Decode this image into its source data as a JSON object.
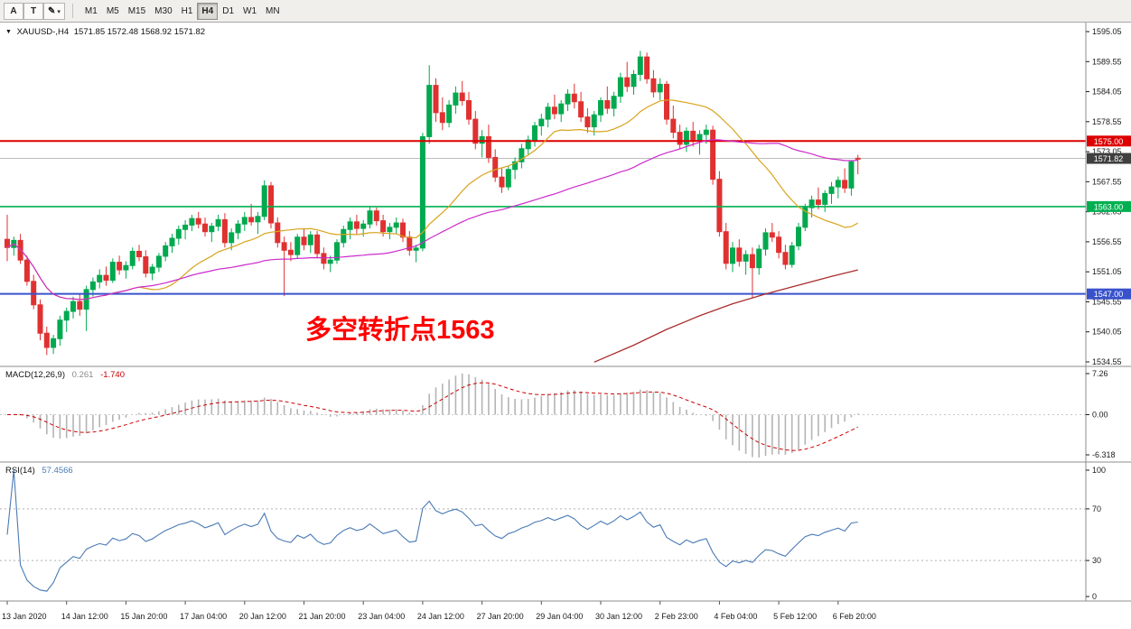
{
  "toolbar": {
    "tools": [
      {
        "name": "cursor-tool",
        "label": "A"
      },
      {
        "name": "text-tool",
        "label": "T"
      },
      {
        "name": "draw-tool",
        "label": "✎"
      }
    ],
    "draw_caret": "▾",
    "timeframes": [
      "M1",
      "M5",
      "M15",
      "M30",
      "H1",
      "H4",
      "D1",
      "W1",
      "MN"
    ],
    "active_timeframe": "H4"
  },
  "chart": {
    "title_marker": "▼",
    "symbol_title": "XAUUSD-,H4",
    "ohlc_text": "1571.85 1572.48 1568.92 1571.82",
    "annotation": {
      "text": "多空转折点1563",
      "color": "#ff0000"
    },
    "macd_label": {
      "name": "MACD(12,26,9)",
      "main_value": "0.261",
      "signal_value": "-1.740"
    },
    "rsi_label": {
      "name": "RSI(14)",
      "value": "57.4566"
    }
  },
  "chart_data": {
    "type": "candlestick",
    "symbol": "XAUUSD-",
    "timeframe": "H4",
    "title": "XAUUSD-,H4 1571.85 1572.48 1568.92 1571.82",
    "last_candle": {
      "open": 1571.85,
      "high": 1572.48,
      "low": 1568.92,
      "close": 1571.82
    },
    "x_labels": [
      "13 Jan 2020",
      "14 Jan 12:00",
      "15 Jan 20:00",
      "17 Jan 04:00",
      "20 Jan 12:00",
      "21 Jan 20:00",
      "23 Jan 04:00",
      "24 Jan 12:00",
      "27 Jan 20:00",
      "29 Jan 04:00",
      "30 Jan 12:00",
      "2 Feb 23:00",
      "4 Feb 04:00",
      "5 Feb 12:00",
      "6 Feb 20:00"
    ],
    "candles_per_label": 9,
    "price_axis_labels": [
      "1595.05",
      "1589.55",
      "1584.05",
      "1578.55",
      "1573.05",
      "1567.55",
      "1562.05",
      "1556.55",
      "1551.05",
      "1545.55",
      "1540.05",
      "1534.55"
    ],
    "horizontal_lines": [
      {
        "price": 1575.0,
        "label": "1575.00",
        "color": "#dd0000",
        "width": 2
      },
      {
        "price": 1563.0,
        "label": "1563.00",
        "color": "#00b050",
        "width": 1.6
      },
      {
        "price": 1547.0,
        "label": "1547.00",
        "color": "#3952cc",
        "width": 2
      }
    ],
    "current_price": {
      "price": 1571.82,
      "label": "1571.82",
      "color": "#3f3f3f"
    },
    "candle_colors": {
      "up": "#00a94f",
      "down": "#e03131"
    },
    "ohlc": {
      "open": [
        1557.0,
        1555.5,
        1556.8,
        1553.2,
        1549.3,
        1545.0,
        1539.8,
        1537.2,
        1538.8,
        1542.2,
        1543.8,
        1545.6,
        1544.2,
        1547.8,
        1549.2,
        1550.4,
        1549.5,
        1552.8,
        1551.4,
        1552.2,
        1554.8,
        1553.8,
        1550.8,
        1551.9,
        1553.9,
        1555.8,
        1557.2,
        1558.8,
        1559.6,
        1560.8,
        1559.8,
        1558.4,
        1559.4,
        1560.6,
        1556.4,
        1558.2,
        1559.8,
        1561.0,
        1560.2,
        1561.2,
        1566.8,
        1560.0,
        1556.4,
        1555.0,
        1554.2,
        1557.4,
        1556.0,
        1557.8,
        1554.4,
        1552.6,
        1553.2,
        1556.4,
        1558.8,
        1560.2,
        1559.0,
        1559.8,
        1562.2,
        1560.4,
        1558.4,
        1559.2,
        1560.0,
        1557.4,
        1555.0,
        1555.4,
        1575.8,
        1585.2,
        1580.2,
        1578.4,
        1581.6,
        1583.8,
        1582.4,
        1579.0,
        1574.6,
        1575.8,
        1572.0,
        1568.4,
        1566.6,
        1569.8,
        1571.2,
        1573.6,
        1575.2,
        1577.8,
        1579.0,
        1581.2,
        1580.0,
        1581.8,
        1583.6,
        1582.2,
        1579.4,
        1577.6,
        1579.8,
        1582.4,
        1581.0,
        1583.2,
        1586.6,
        1585.0,
        1587.2,
        1590.4,
        1586.4,
        1584.0,
        1585.4,
        1579.0,
        1576.6,
        1574.4,
        1576.8,
        1575.0,
        1576.2,
        1577.0,
        1568.0,
        1558.4,
        1552.6,
        1555.4,
        1553.0,
        1554.2,
        1551.8,
        1555.2,
        1558.2,
        1557.4,
        1554.6,
        1552.4,
        1555.8,
        1559.2,
        1562.8,
        1564.2,
        1563.4,
        1565.4,
        1566.6,
        1567.8,
        1566.4,
        1571.85
      ],
      "high": [
        1561.5,
        1557.5,
        1558.0,
        1554.0,
        1550.5,
        1546.0,
        1541.0,
        1539.5,
        1543.0,
        1544.5,
        1546.5,
        1547.0,
        1548.5,
        1550.0,
        1551.5,
        1552.0,
        1553.5,
        1554.0,
        1553.0,
        1555.5,
        1556.0,
        1555.0,
        1552.5,
        1554.5,
        1556.5,
        1558.0,
        1559.5,
        1560.5,
        1561.5,
        1562.0,
        1561.0,
        1560.0,
        1561.5,
        1561.8,
        1559.0,
        1560.5,
        1562.0,
        1563.5,
        1562.0,
        1567.8,
        1567.5,
        1561.0,
        1557.5,
        1556.5,
        1558.0,
        1559.0,
        1558.5,
        1558.5,
        1555.5,
        1554.0,
        1557.0,
        1559.5,
        1561.0,
        1561.5,
        1560.5,
        1563.0,
        1562.8,
        1561.5,
        1560.0,
        1561.0,
        1560.8,
        1558.5,
        1556.0,
        1576.5,
        1588.9,
        1586.5,
        1583.0,
        1582.5,
        1585.0,
        1586.0,
        1584.0,
        1580.5,
        1577.0,
        1578.0,
        1573.5,
        1570.0,
        1570.5,
        1572.0,
        1574.5,
        1576.0,
        1578.5,
        1580.0,
        1582.0,
        1583.5,
        1582.5,
        1584.5,
        1585.5,
        1584.0,
        1581.0,
        1580.5,
        1583.0,
        1585.0,
        1584.0,
        1587.5,
        1589.5,
        1588.0,
        1591.5,
        1591.2,
        1588.0,
        1586.5,
        1586.0,
        1581.5,
        1578.0,
        1577.5,
        1578.5,
        1577.0,
        1578.0,
        1577.8,
        1569.5,
        1560.0,
        1556.5,
        1557.0,
        1555.0,
        1555.5,
        1556.0,
        1559.0,
        1560.0,
        1558.5,
        1556.0,
        1556.5,
        1560.0,
        1563.5,
        1565.0,
        1566.5,
        1566.0,
        1567.5,
        1568.5,
        1570.0,
        1571.5,
        1572.48
      ],
      "low": [
        1553.0,
        1554.0,
        1552.5,
        1548.5,
        1544.2,
        1538.5,
        1535.8,
        1536.0,
        1537.5,
        1540.0,
        1542.5,
        1543.0,
        1540.2,
        1546.5,
        1548.0,
        1548.5,
        1549.0,
        1550.5,
        1549.8,
        1551.5,
        1553.0,
        1550.0,
        1549.5,
        1551.0,
        1553.0,
        1554.5,
        1556.0,
        1557.0,
        1558.5,
        1559.0,
        1557.5,
        1556.5,
        1558.5,
        1555.5,
        1555.0,
        1557.0,
        1558.5,
        1559.5,
        1558.0,
        1560.5,
        1559.0,
        1555.5,
        1546.6,
        1553.0,
        1553.5,
        1555.0,
        1554.5,
        1553.5,
        1551.5,
        1551.0,
        1552.5,
        1555.5,
        1557.0,
        1558.0,
        1557.5,
        1559.0,
        1559.5,
        1557.5,
        1557.0,
        1558.0,
        1556.5,
        1554.0,
        1552.8,
        1554.8,
        1574.5,
        1578.5,
        1577.0,
        1577.5,
        1580.0,
        1581.5,
        1578.0,
        1573.5,
        1572.0,
        1571.0,
        1567.5,
        1565.5,
        1566.0,
        1568.0,
        1570.0,
        1572.5,
        1574.0,
        1576.0,
        1577.5,
        1579.0,
        1578.5,
        1580.5,
        1581.0,
        1578.5,
        1576.5,
        1576.0,
        1578.5,
        1580.0,
        1579.5,
        1582.0,
        1584.0,
        1583.5,
        1586.0,
        1585.5,
        1583.0,
        1582.5,
        1578.0,
        1575.5,
        1573.5,
        1573.0,
        1574.0,
        1572.5,
        1574.5,
        1567.0,
        1557.5,
        1551.5,
        1551.0,
        1552.0,
        1550.5,
        1546.3,
        1550.5,
        1554.0,
        1556.5,
        1553.5,
        1551.5,
        1551.8,
        1555.0,
        1558.5,
        1561.0,
        1562.5,
        1562.0,
        1563.5,
        1564.5,
        1565.5,
        1565.0,
        1568.92
      ],
      "close": [
        1555.5,
        1556.8,
        1553.2,
        1549.3,
        1545.0,
        1539.8,
        1537.2,
        1538.8,
        1542.2,
        1543.8,
        1545.6,
        1544.2,
        1547.8,
        1549.2,
        1550.4,
        1549.5,
        1552.8,
        1551.4,
        1552.2,
        1554.8,
        1553.8,
        1550.8,
        1551.9,
        1553.9,
        1555.8,
        1557.2,
        1558.8,
        1559.6,
        1560.8,
        1559.8,
        1558.4,
        1559.4,
        1560.6,
        1556.4,
        1558.2,
        1559.8,
        1561.0,
        1560.2,
        1561.2,
        1566.8,
        1560.0,
        1556.4,
        1555.0,
        1554.2,
        1557.4,
        1556.0,
        1557.8,
        1554.4,
        1552.6,
        1553.2,
        1556.4,
        1558.8,
        1560.2,
        1559.0,
        1559.8,
        1562.2,
        1560.4,
        1558.4,
        1559.2,
        1560.0,
        1557.4,
        1555.0,
        1555.4,
        1575.8,
        1585.2,
        1580.2,
        1578.4,
        1581.6,
        1583.8,
        1582.4,
        1579.0,
        1574.6,
        1575.8,
        1572.0,
        1568.4,
        1566.6,
        1569.8,
        1571.2,
        1573.6,
        1575.2,
        1577.8,
        1579.0,
        1581.2,
        1580.0,
        1581.8,
        1583.6,
        1582.2,
        1579.4,
        1577.6,
        1579.8,
        1582.4,
        1581.0,
        1583.2,
        1586.6,
        1585.0,
        1587.2,
        1590.4,
        1586.4,
        1584.0,
        1585.4,
        1579.0,
        1576.6,
        1574.4,
        1576.8,
        1575.0,
        1576.2,
        1577.0,
        1568.0,
        1558.4,
        1552.6,
        1555.4,
        1553.0,
        1554.2,
        1551.8,
        1555.2,
        1558.2,
        1557.4,
        1554.6,
        1552.4,
        1555.8,
        1559.2,
        1562.8,
        1564.2,
        1563.4,
        1565.4,
        1566.6,
        1567.8,
        1566.4,
        1571.2,
        1571.82
      ]
    },
    "moving_averages": [
      {
        "name": "ma-fast",
        "period": 21,
        "color": "#d9a41d"
      },
      {
        "name": "ma-slow",
        "period": 55,
        "color": "#cc2bcc"
      }
    ],
    "long_ma": {
      "color": "#aa2e2e",
      "points": [
        [
          89,
          1534.5
        ],
        [
          95,
          1537.6
        ],
        [
          100,
          1540.5
        ],
        [
          105,
          1543.0
        ],
        [
          110,
          1545.2
        ],
        [
          115,
          1547.0
        ],
        [
          120,
          1548.6
        ],
        [
          125,
          1550.2
        ],
        [
          129,
          1551.4
        ]
      ]
    },
    "indicators": {
      "macd": {
        "label": "MACD(12,26,9)",
        "params": [
          12,
          26,
          9
        ],
        "value": 0.261,
        "signal_value": -1.74,
        "axis_labels": [
          "7.26",
          "0.00",
          "-6.318"
        ],
        "histogram_color": "#b4b4b4",
        "signal_color": "#cc0000"
      },
      "rsi": {
        "label": "RSI(14)",
        "period": 14,
        "value": 57.4566,
        "levels": [
          70,
          30
        ],
        "axis_labels": [
          "100",
          "70",
          "30",
          "0"
        ],
        "color": "#4a7ab5"
      }
    }
  }
}
